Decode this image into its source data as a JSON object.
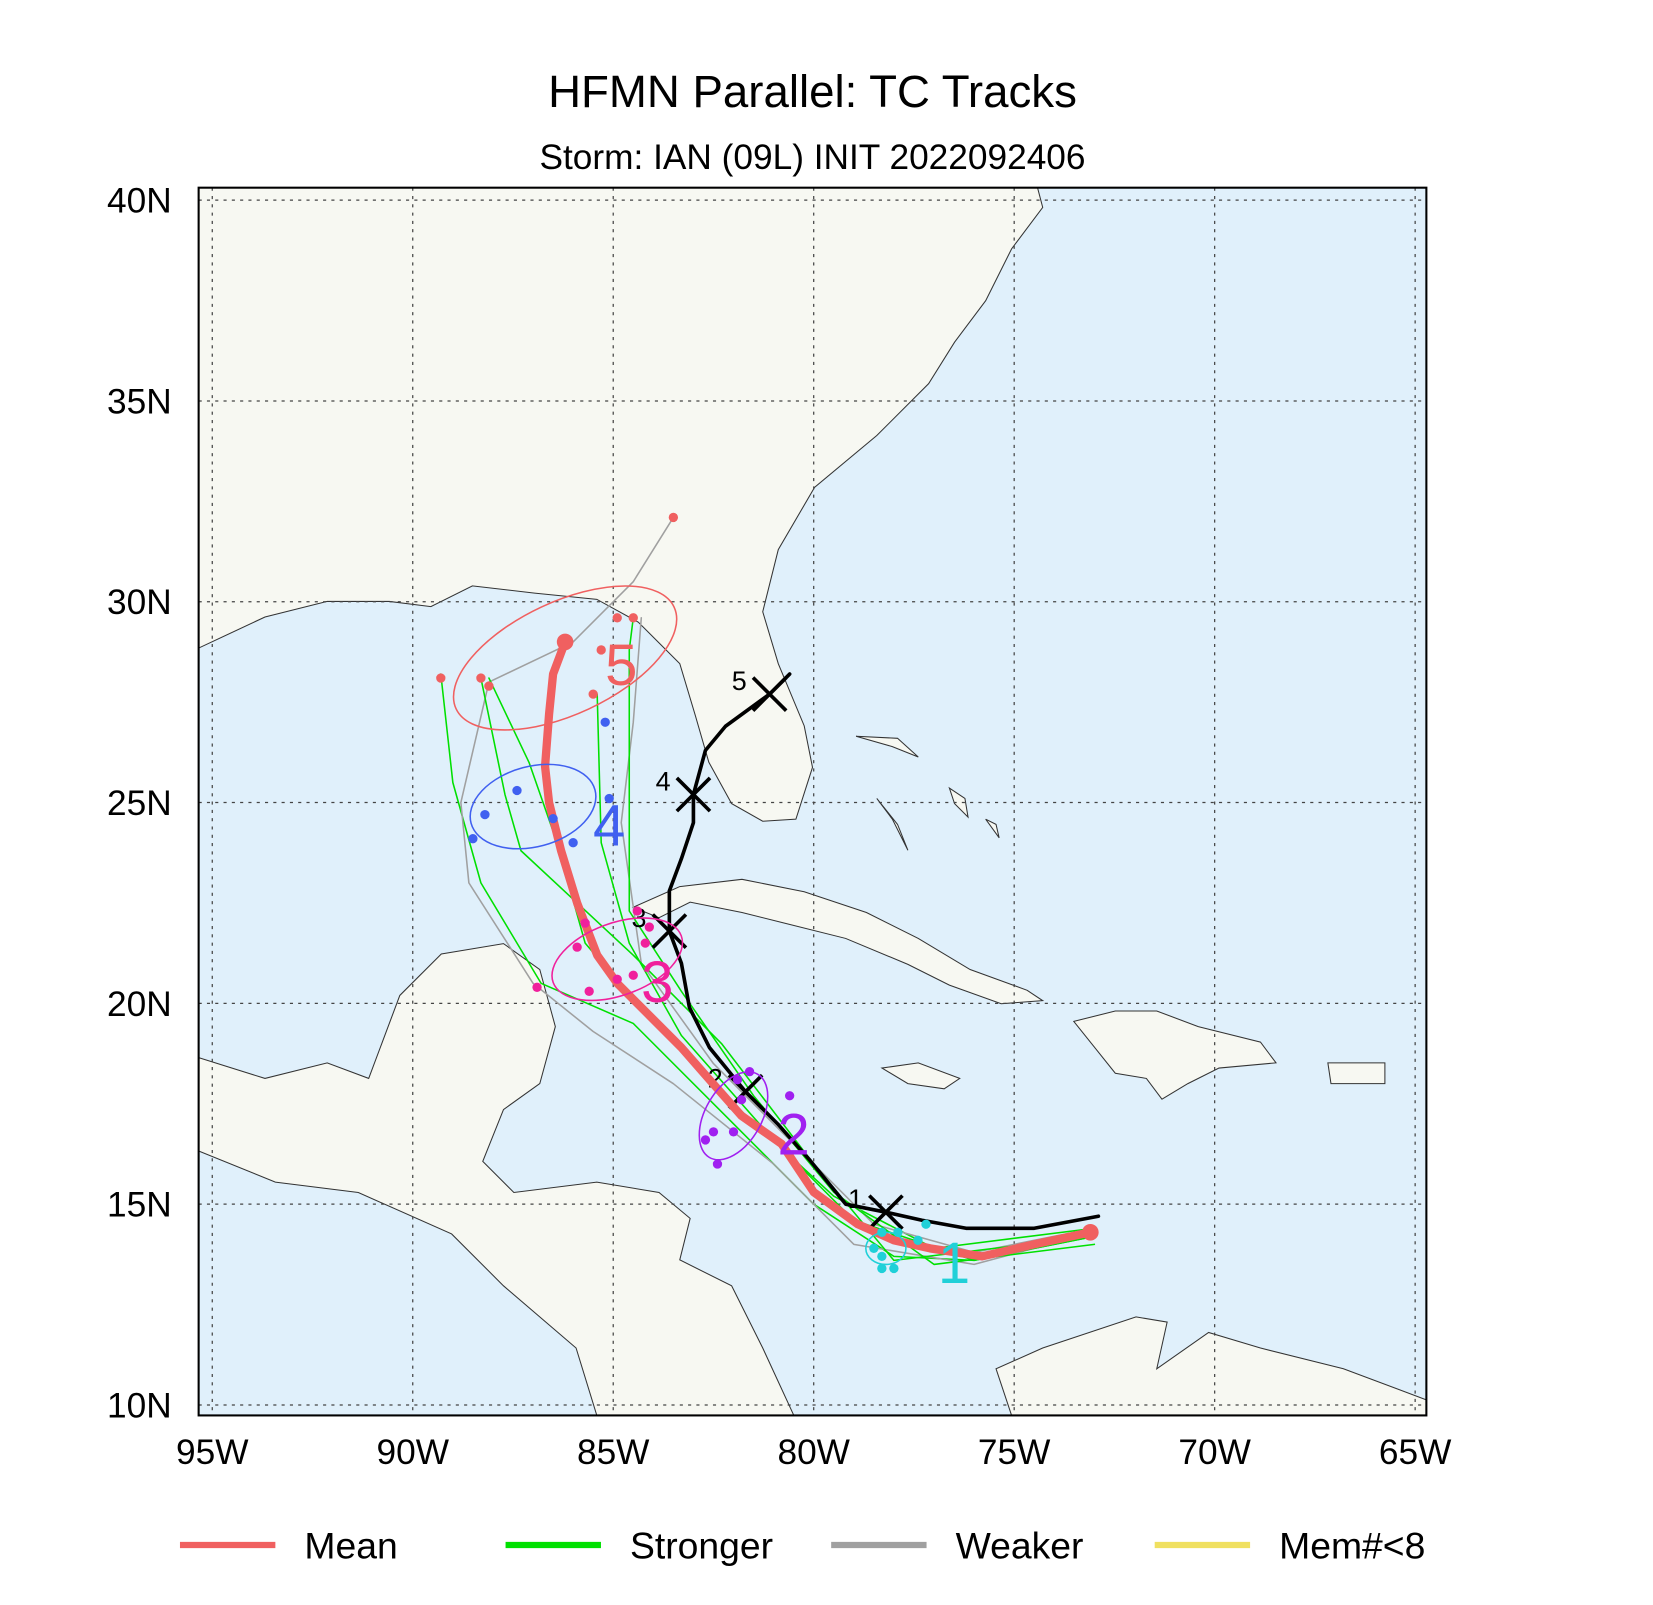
{
  "title": "HFMN Parallel: TC Tracks",
  "subtitle": "Storm: IAN (09L) INIT 2022092406",
  "map": {
    "lonlim": [
      -95.34,
      -64.72
    ],
    "latlim": [
      9.74,
      40.31
    ],
    "lonticks": [
      {
        "value": -95,
        "label": "95W"
      },
      {
        "value": -90,
        "label": "90W"
      },
      {
        "value": -85,
        "label": "85W"
      },
      {
        "value": -80,
        "label": "80W"
      },
      {
        "value": -75,
        "label": "75W"
      },
      {
        "value": -70,
        "label": "70W"
      },
      {
        "value": -65,
        "label": "65W"
      }
    ],
    "latticks": [
      {
        "value": 10,
        "label": "10N"
      },
      {
        "value": 15,
        "label": "15N"
      },
      {
        "value": 20,
        "label": "20N"
      },
      {
        "value": 25,
        "label": "25N"
      },
      {
        "value": 30,
        "label": "30N"
      },
      {
        "value": 35,
        "label": "35N"
      },
      {
        "value": 40,
        "label": "40N"
      }
    ],
    "grid": true,
    "members": [
      {
        "kind": "Stronger",
        "lon": [
          -73,
          -76,
          -78,
          -80,
          -82,
          -84.5,
          -86.8,
          -88.3,
          -89,
          -89.3
        ],
        "lat": [
          14.2,
          13.6,
          13.7,
          15,
          17,
          19.5,
          20.5,
          23,
          25.5,
          28.2
        ]
      },
      {
        "kind": "Weaker",
        "lon": [
          -73,
          -76,
          -79,
          -81,
          -83.5,
          -85.5,
          -87,
          -88.6,
          -88.8,
          -88.1,
          -86,
          -84.5,
          -83.5
        ],
        "lat": [
          14.3,
          13.5,
          14,
          16,
          18,
          19.3,
          20.5,
          23,
          25,
          28,
          29,
          30.5,
          32.1
        ]
      },
      {
        "kind": "Stronger",
        "lon": [
          -73,
          -77,
          -79.5,
          -82,
          -84,
          -85.7,
          -86.4,
          -87.1,
          -88.1
        ],
        "lat": [
          14.4,
          13.9,
          15.2,
          17.5,
          19.5,
          21.5,
          24,
          26,
          28.1
        ]
      },
      {
        "kind": "Weaker",
        "lon": [
          -73,
          -76,
          -78.5,
          -80.5,
          -82.5,
          -84.3,
          -84.8,
          -84.5,
          -84.3
        ],
        "lat": [
          14.4,
          13.8,
          14.5,
          16.5,
          18.5,
          21,
          24.5,
          27,
          29.6
        ]
      },
      {
        "kind": "Stronger",
        "lon": [
          -73,
          -76,
          -79,
          -81,
          -83.3,
          -84.6,
          -85.3,
          -85.4
        ],
        "lat": [
          14.2,
          13.6,
          14.6,
          16.6,
          19.2,
          21.5,
          24,
          27.7
        ]
      },
      {
        "kind": "Stronger",
        "lon": [
          -73,
          -77,
          -79.5,
          -81.5,
          -83.3,
          -84.6,
          -84.6,
          -84.6,
          -84.5
        ],
        "lat": [
          14,
          13.5,
          15.3,
          17.7,
          20.3,
          22.3,
          25.5,
          28.8,
          29.6
        ]
      },
      {
        "kind": "Stronger",
        "lon": [
          -73,
          -78,
          -80,
          -82.3,
          -84.5,
          -87.3,
          -87.7,
          -88.3
        ],
        "lat": [
          14.2,
          13.6,
          16,
          19,
          21.2,
          23.8,
          25.2,
          28.1
        ]
      }
    ],
    "official": {
      "lon": [
        -72.9,
        -74.5,
        -76.2,
        -77.3,
        -78.2,
        -79.2,
        -80.1,
        -80.9,
        -81.7,
        -82.6,
        -83.1,
        -83.3,
        -83.6,
        -83.6,
        -83.3,
        -83.0,
        -83.0,
        -82.7,
        -82.2,
        -81.1,
        -80.6
      ],
      "lat": [
        14.7,
        14.4,
        14.4,
        14.6,
        14.8,
        15.0,
        16.1,
        17.0,
        17.8,
        18.9,
        19.9,
        21.0,
        21.8,
        22.8,
        23.6,
        24.5,
        25.2,
        26.3,
        26.9,
        27.7,
        28.2
      ],
      "days": [
        {
          "label": "1",
          "lon": -78.2,
          "lat": 14.8
        },
        {
          "label": "2",
          "lon": -81.7,
          "lat": 17.8
        },
        {
          "label": "3",
          "lon": -83.6,
          "lat": 21.8
        },
        {
          "label": "4",
          "lon": -83.0,
          "lat": 25.2
        },
        {
          "label": "5",
          "lon": -81.1,
          "lat": 27.7
        }
      ]
    },
    "mean": {
      "lon": [
        -73.1,
        -74.5,
        -75.8,
        -77.1,
        -78.0,
        -78.9,
        -80.0,
        -80.8,
        -81.8,
        -82.6,
        -83.3,
        -84.1,
        -84.9,
        -85.4,
        -85.9,
        -86.3,
        -86.6,
        -86.7,
        -86.6,
        -86.5,
        -86.2
      ],
      "lat": [
        14.3,
        14.0,
        13.7,
        13.9,
        14.1,
        14.5,
        15.3,
        16.5,
        17.2,
        18.1,
        18.9,
        19.7,
        20.5,
        21.2,
        22.5,
        23.8,
        25.0,
        25.9,
        27.2,
        28.2,
        29.0
      ]
    },
    "spread": [
      {
        "label": "1",
        "color": "#20d0d8",
        "center": [
          -78.2,
          13.9
        ],
        "axes": [
          0.5,
          0.4
        ],
        "angle": 0,
        "label_at": [
          -76.5,
          13.6
        ],
        "lon": [
          -78.3,
          -77.9,
          -77.2,
          -77.4,
          -78.5,
          -78.3,
          -78.3,
          -78.0
        ],
        "lat": [
          14.3,
          14.3,
          14.5,
          14.1,
          13.9,
          13.7,
          13.4,
          13.4
        ]
      },
      {
        "label": "2",
        "color": "#a020f0",
        "center": [
          -82.0,
          17.2
        ],
        "axes": [
          1.2,
          0.7
        ],
        "angle": -60,
        "label_at": [
          -80.5,
          16.8
        ],
        "lon": [
          -81.9,
          -81.6,
          -80.6,
          -81.8,
          -82.5,
          -82.7,
          -82.0,
          -82.4
        ],
        "lat": [
          18.1,
          18.3,
          17.7,
          17.6,
          16.8,
          16.6,
          16.8,
          16.0
        ]
      },
      {
        "label": "3",
        "color": "#f0209c",
        "center": [
          -84.9,
          21.1
        ],
        "axes": [
          1.7,
          0.9
        ],
        "angle": -20,
        "label_at": [
          -83.9,
          20.6
        ],
        "lon": [
          -84.4,
          -85.7,
          -84.1,
          -85.9,
          -84.2,
          -84.5,
          -84.9,
          -85.6,
          -86.9
        ],
        "lat": [
          22.3,
          22.0,
          21.9,
          21.4,
          21.5,
          20.7,
          20.6,
          20.3,
          20.4
        ]
      },
      {
        "label": "4",
        "color": "#4060f0",
        "center": [
          -87.0,
          24.9
        ],
        "axes": [
          1.6,
          1.0
        ],
        "angle": -15,
        "label_at": [
          -85.1,
          24.5
        ],
        "lon": [
          -87.4,
          -88.2,
          -88.5,
          -86.5,
          -86.0,
          -85.1,
          -85.2
        ],
        "lat": [
          25.3,
          24.7,
          24.1,
          24.6,
          24.0,
          25.1,
          27.0
        ]
      },
      {
        "label": "5",
        "color": "#f06060",
        "center": [
          -86.2,
          28.6
        ],
        "axes": [
          3.0,
          1.4
        ],
        "angle": -25,
        "label_at": [
          -84.8,
          28.5
        ],
        "lon": [
          -89.3,
          -88.3,
          -88.1,
          -85.3,
          -85.5,
          -84.9,
          -84.5,
          -83.5
        ],
        "lat": [
          28.1,
          28.1,
          27.9,
          28.8,
          27.7,
          29.6,
          29.6,
          32.1
        ]
      }
    ]
  },
  "legend": [
    {
      "name": "Mean",
      "color": "#f06060"
    },
    {
      "name": "Stronger",
      "color": "#00e000"
    },
    {
      "name": "Weaker",
      "color": "#a0a0a0"
    },
    {
      "name": "Mem#<8",
      "color": "#f0e060"
    }
  ]
}
